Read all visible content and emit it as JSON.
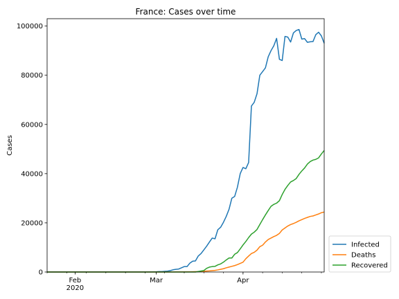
{
  "chart_data": {
    "type": "line",
    "title": "France: Cases over time",
    "xlabel": "",
    "ylabel": "Cases",
    "xlim": [
      "2020-01-22",
      "2020-04-30"
    ],
    "ylim": [
      0,
      103000
    ],
    "grid": false,
    "legend_position": "outside-bottom-right",
    "x_ticks": [
      {
        "date": "2020-02-01",
        "label": "Feb",
        "sublabel": "2020"
      },
      {
        "date": "2020-03-01",
        "label": "Mar",
        "sublabel": ""
      },
      {
        "date": "2020-04-01",
        "label": "Apr",
        "sublabel": ""
      }
    ],
    "y_ticks": [
      0,
      20000,
      40000,
      60000,
      80000,
      100000
    ],
    "y_tick_labels": [
      "0",
      "20000",
      "40000",
      "60000",
      "80000",
      "100000"
    ],
    "series": [
      {
        "name": "Infected",
        "color": "#1f77b4",
        "points": [
          [
            "2020-01-22",
            0
          ],
          [
            "2020-02-01",
            6
          ],
          [
            "2020-02-10",
            11
          ],
          [
            "2020-02-20",
            12
          ],
          [
            "2020-02-26",
            12
          ],
          [
            "2020-02-28",
            40
          ],
          [
            "2020-03-01",
            100
          ],
          [
            "2020-03-02",
            180
          ],
          [
            "2020-03-03",
            190
          ],
          [
            "2020-03-04",
            270
          ],
          [
            "2020-03-05",
            350
          ],
          [
            "2020-03-06",
            570
          ],
          [
            "2020-03-07",
            900
          ],
          [
            "2020-03-08",
            1100
          ],
          [
            "2020-03-09",
            1200
          ],
          [
            "2020-03-10",
            1700
          ],
          [
            "2020-03-11",
            2200
          ],
          [
            "2020-03-12",
            2200
          ],
          [
            "2020-03-13",
            3600
          ],
          [
            "2020-03-14",
            4400
          ],
          [
            "2020-03-15",
            4500
          ],
          [
            "2020-03-16",
            6500
          ],
          [
            "2020-03-17",
            7500
          ],
          [
            "2020-03-18",
            9000
          ],
          [
            "2020-03-19",
            10500
          ],
          [
            "2020-03-20",
            12200
          ],
          [
            "2020-03-21",
            13800
          ],
          [
            "2020-03-22",
            13500
          ],
          [
            "2020-03-23",
            17200
          ],
          [
            "2020-03-24",
            18200
          ],
          [
            "2020-03-25",
            20200
          ],
          [
            "2020-03-26",
            22600
          ],
          [
            "2020-03-27",
            25500
          ],
          [
            "2020-03-28",
            30000
          ],
          [
            "2020-03-29",
            30700
          ],
          [
            "2020-03-30",
            34500
          ],
          [
            "2020-03-31",
            40000
          ],
          [
            "2020-04-01",
            42500
          ],
          [
            "2020-04-02",
            42000
          ],
          [
            "2020-04-03",
            44500
          ],
          [
            "2020-04-04",
            67500
          ],
          [
            "2020-04-05",
            69000
          ],
          [
            "2020-04-06",
            72500
          ],
          [
            "2020-04-07",
            80000
          ],
          [
            "2020-04-08",
            81500
          ],
          [
            "2020-04-09",
            83000
          ],
          [
            "2020-04-10",
            87500
          ],
          [
            "2020-04-11",
            90000
          ],
          [
            "2020-04-12",
            92000
          ],
          [
            "2020-04-13",
            95000
          ],
          [
            "2020-04-14",
            86500
          ],
          [
            "2020-04-15",
            86000
          ],
          [
            "2020-04-16",
            95800
          ],
          [
            "2020-04-17",
            95500
          ],
          [
            "2020-04-18",
            93500
          ],
          [
            "2020-04-19",
            97200
          ],
          [
            "2020-04-20",
            98200
          ],
          [
            "2020-04-21",
            98600
          ],
          [
            "2020-04-22",
            94700
          ],
          [
            "2020-04-23",
            94900
          ],
          [
            "2020-04-24",
            93400
          ],
          [
            "2020-04-25",
            93600
          ],
          [
            "2020-04-26",
            93700
          ],
          [
            "2020-04-27",
            96500
          ],
          [
            "2020-04-28",
            97500
          ],
          [
            "2020-04-29",
            96000
          ],
          [
            "2020-04-30",
            93000
          ]
        ]
      },
      {
        "name": "Deaths",
        "color": "#ff7f0e",
        "points": [
          [
            "2020-01-22",
            0
          ],
          [
            "2020-03-05",
            5
          ],
          [
            "2020-03-10",
            33
          ],
          [
            "2020-03-13",
            79
          ],
          [
            "2020-03-15",
            127
          ],
          [
            "2020-03-17",
            175
          ],
          [
            "2020-03-19",
            372
          ],
          [
            "2020-03-20",
            450
          ],
          [
            "2020-03-21",
            562
          ],
          [
            "2020-03-22",
            674
          ],
          [
            "2020-03-23",
            860
          ],
          [
            "2020-03-24",
            1100
          ],
          [
            "2020-03-25",
            1330
          ],
          [
            "2020-03-26",
            1700
          ],
          [
            "2020-03-27",
            2000
          ],
          [
            "2020-03-28",
            2300
          ],
          [
            "2020-03-29",
            2600
          ],
          [
            "2020-03-30",
            3000
          ],
          [
            "2020-03-31",
            3500
          ],
          [
            "2020-04-01",
            4000
          ],
          [
            "2020-04-02",
            5400
          ],
          [
            "2020-04-03",
            6500
          ],
          [
            "2020-04-04",
            7500
          ],
          [
            "2020-04-05",
            8000
          ],
          [
            "2020-04-06",
            8900
          ],
          [
            "2020-04-07",
            10300
          ],
          [
            "2020-04-08",
            10900
          ],
          [
            "2020-04-09",
            12200
          ],
          [
            "2020-04-10",
            13200
          ],
          [
            "2020-04-11",
            13800
          ],
          [
            "2020-04-12",
            14400
          ],
          [
            "2020-04-13",
            14900
          ],
          [
            "2020-04-14",
            15700
          ],
          [
            "2020-04-15",
            17100
          ],
          [
            "2020-04-16",
            17900
          ],
          [
            "2020-04-17",
            18700
          ],
          [
            "2020-04-18",
            19300
          ],
          [
            "2020-04-19",
            19700
          ],
          [
            "2020-04-20",
            20200
          ],
          [
            "2020-04-21",
            20800
          ],
          [
            "2020-04-22",
            21300
          ],
          [
            "2020-04-23",
            21800
          ],
          [
            "2020-04-24",
            22200
          ],
          [
            "2020-04-25",
            22600
          ],
          [
            "2020-04-26",
            22800
          ],
          [
            "2020-04-27",
            23200
          ],
          [
            "2020-04-28",
            23600
          ],
          [
            "2020-04-29",
            24100
          ],
          [
            "2020-04-30",
            24400
          ]
        ]
      },
      {
        "name": "Recovered",
        "color": "#2ca02c",
        "points": [
          [
            "2020-01-22",
            0
          ],
          [
            "2020-02-15",
            12
          ],
          [
            "2020-03-01",
            12
          ],
          [
            "2020-03-10",
            12
          ],
          [
            "2020-03-15",
            12
          ],
          [
            "2020-03-18",
            600
          ],
          [
            "2020-03-19",
            1500
          ],
          [
            "2020-03-20",
            2000
          ],
          [
            "2020-03-21",
            2200
          ],
          [
            "2020-03-22",
            2300
          ],
          [
            "2020-03-23",
            2900
          ],
          [
            "2020-03-24",
            3300
          ],
          [
            "2020-03-25",
            4000
          ],
          [
            "2020-03-26",
            4900
          ],
          [
            "2020-03-27",
            5700
          ],
          [
            "2020-03-28",
            5700
          ],
          [
            "2020-03-29",
            7200
          ],
          [
            "2020-03-30",
            7900
          ],
          [
            "2020-03-31",
            9400
          ],
          [
            "2020-04-01",
            11000
          ],
          [
            "2020-04-02",
            12400
          ],
          [
            "2020-04-03",
            14000
          ],
          [
            "2020-04-04",
            15400
          ],
          [
            "2020-04-05",
            16200
          ],
          [
            "2020-04-06",
            17300
          ],
          [
            "2020-04-07",
            19300
          ],
          [
            "2020-04-08",
            21300
          ],
          [
            "2020-04-09",
            23200
          ],
          [
            "2020-04-10",
            25000
          ],
          [
            "2020-04-11",
            26700
          ],
          [
            "2020-04-12",
            27500
          ],
          [
            "2020-04-13",
            28000
          ],
          [
            "2020-04-14",
            29000
          ],
          [
            "2020-04-15",
            31500
          ],
          [
            "2020-04-16",
            33600
          ],
          [
            "2020-04-17",
            35200
          ],
          [
            "2020-04-18",
            36600
          ],
          [
            "2020-04-19",
            37200
          ],
          [
            "2020-04-20",
            38000
          ],
          [
            "2020-04-21",
            39700
          ],
          [
            "2020-04-22",
            41100
          ],
          [
            "2020-04-23",
            42300
          ],
          [
            "2020-04-24",
            43900
          ],
          [
            "2020-04-25",
            44900
          ],
          [
            "2020-04-26",
            45500
          ],
          [
            "2020-04-27",
            45800
          ],
          [
            "2020-04-28",
            46400
          ],
          [
            "2020-04-29",
            48000
          ],
          [
            "2020-04-30",
            49400
          ]
        ]
      }
    ]
  }
}
